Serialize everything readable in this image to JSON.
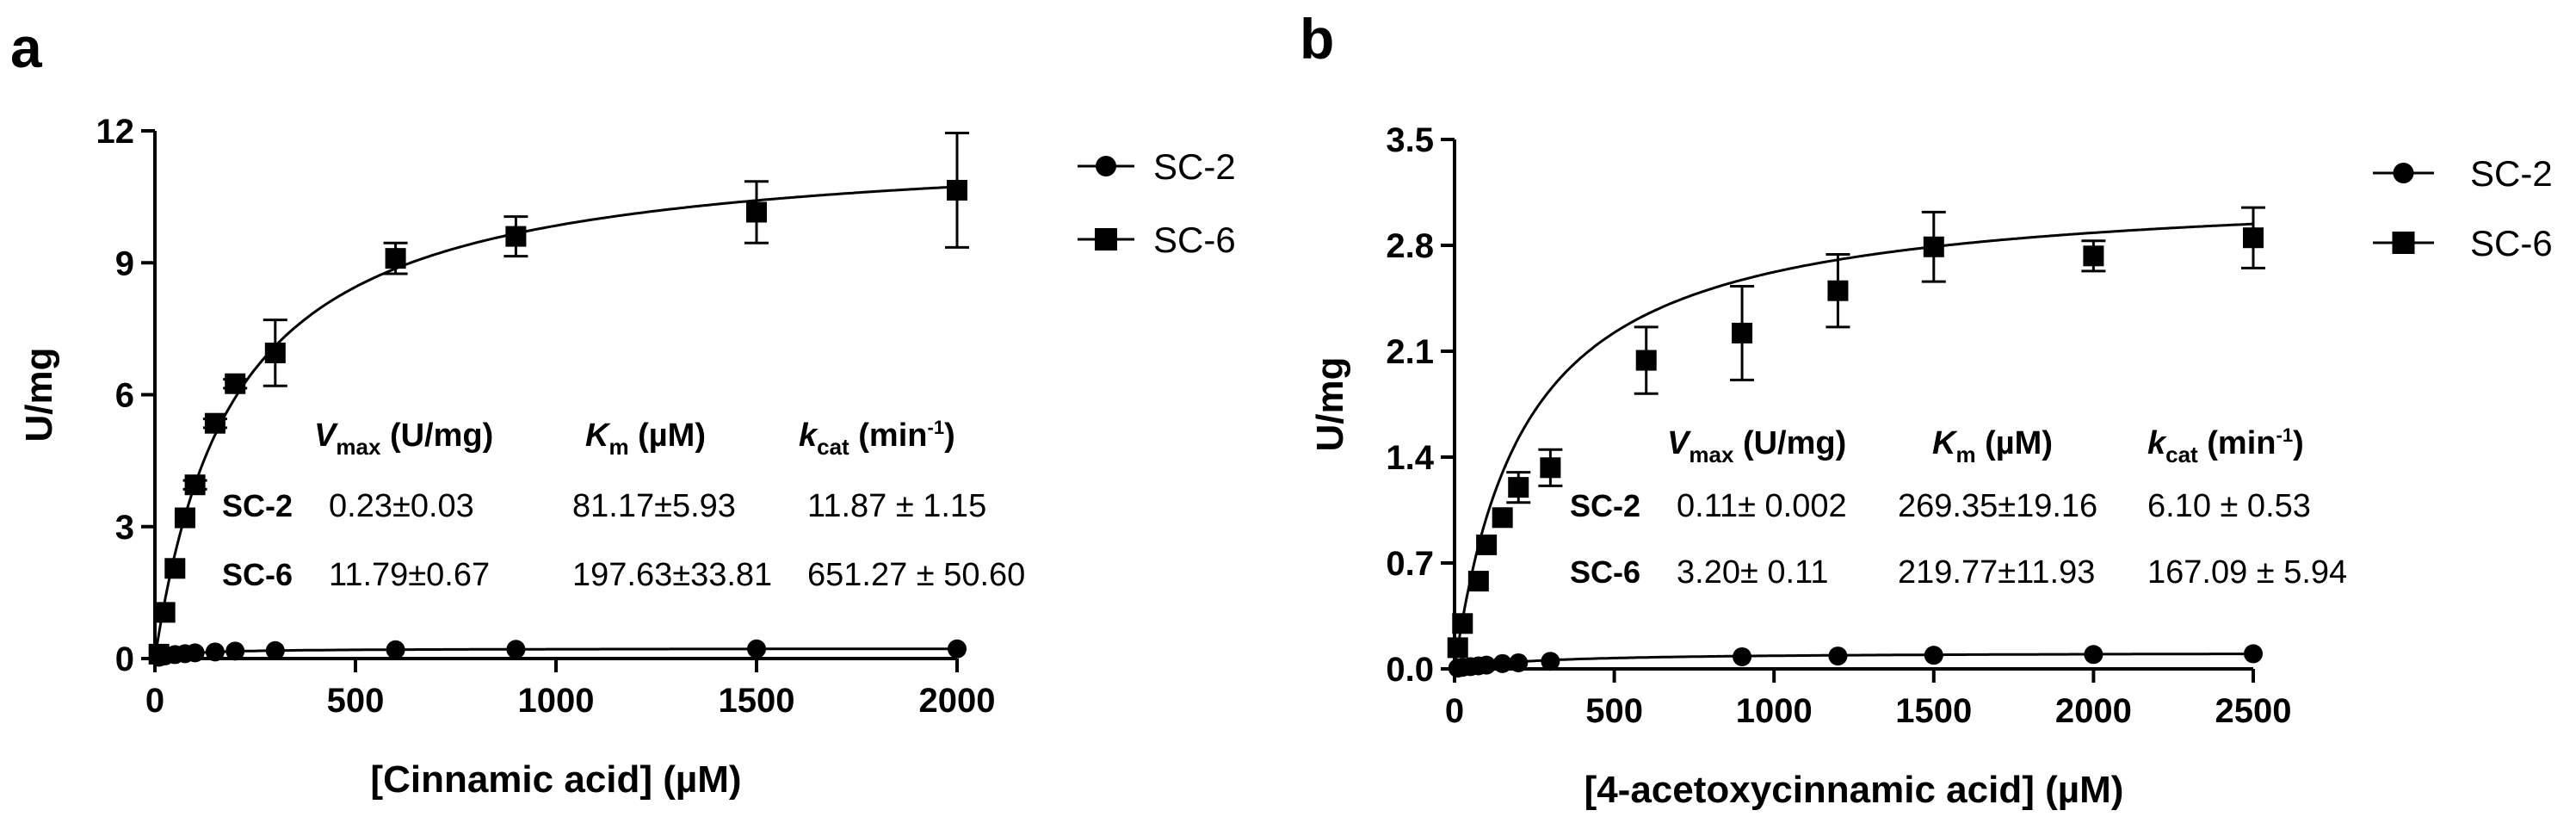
{
  "chart_data": [
    {
      "panel": "a",
      "type": "scatter",
      "title": "",
      "xlabel": "[Cinnamic acid] (µM)",
      "ylabel": "U/mg",
      "xlim": [
        0,
        2000
      ],
      "ylim": [
        0,
        12
      ],
      "xticks": [
        0,
        500,
        1000,
        1500,
        2000
      ],
      "yticks": [
        0,
        3,
        6,
        9,
        12
      ],
      "xtick_labels": [
        "0",
        "500",
        "1000",
        "1500",
        "2000"
      ],
      "ytick_labels": [
        "0",
        "3",
        "6",
        "9",
        "12"
      ],
      "legend_position": "top-right",
      "series": [
        {
          "name": "SC-2",
          "marker": "circle",
          "fit": {
            "vmax": 0.23,
            "km": 81.17
          },
          "points": [
            {
              "x": 10,
              "y": 0.03,
              "err": 0
            },
            {
              "x": 25,
              "y": 0.06,
              "err": 0
            },
            {
              "x": 50,
              "y": 0.09,
              "err": 0
            },
            {
              "x": 75,
              "y": 0.11,
              "err": 0
            },
            {
              "x": 100,
              "y": 0.13,
              "err": 0
            },
            {
              "x": 150,
              "y": 0.15,
              "err": 0
            },
            {
              "x": 200,
              "y": 0.17,
              "err": 0
            },
            {
              "x": 300,
              "y": 0.18,
              "err": 0
            },
            {
              "x": 600,
              "y": 0.2,
              "err": 0
            },
            {
              "x": 900,
              "y": 0.21,
              "err": 0
            },
            {
              "x": 1500,
              "y": 0.22,
              "err": 0
            },
            {
              "x": 2000,
              "y": 0.22,
              "err": 0
            }
          ]
        },
        {
          "name": "SC-6",
          "marker": "square",
          "fit": {
            "vmax": 11.79,
            "km": 197.63
          },
          "points": [
            {
              "x": 10,
              "y": 0.1,
              "err": 0
            },
            {
              "x": 25,
              "y": 1.05,
              "err": 0
            },
            {
              "x": 50,
              "y": 2.05,
              "err": 0
            },
            {
              "x": 75,
              "y": 3.2,
              "err": 0
            },
            {
              "x": 100,
              "y": 3.95,
              "err": 0.1
            },
            {
              "x": 150,
              "y": 5.35,
              "err": 0.1
            },
            {
              "x": 200,
              "y": 6.25,
              "err": 0.1
            },
            {
              "x": 300,
              "y": 6.95,
              "err": 0.75
            },
            {
              "x": 600,
              "y": 9.1,
              "err": 0.35
            },
            {
              "x": 900,
              "y": 9.6,
              "err": 0.45
            },
            {
              "x": 1500,
              "y": 10.15,
              "err": 0.7
            },
            {
              "x": 2000,
              "y": 10.65,
              "err": 1.3
            }
          ]
        }
      ],
      "table": {
        "headers": {
          "vmax": {
            "main": "V",
            "sub": "max",
            "unit": " (U/mg)"
          },
          "km": {
            "main": "K",
            "sub": "m",
            "unit": " (µM)"
          },
          "kcat": {
            "main": "k",
            "sub": "cat",
            "unit": " (min",
            "sup": "-1",
            "close": ")"
          }
        },
        "rows": [
          {
            "label": "SC-2",
            "vmax": "0.23±0.03",
            "km": "81.17±5.93",
            "kcat": "11.87 ± 1.15"
          },
          {
            "label": "SC-6",
            "vmax": "11.79±0.67",
            "km": "197.63±33.81",
            "kcat": "651.27 ± 50.60"
          }
        ]
      }
    },
    {
      "panel": "b",
      "type": "scatter",
      "title": "",
      "xlabel": "[4-acetoxycinnamic acid] (µM)",
      "ylabel": "U/mg",
      "xlim": [
        0,
        2500
      ],
      "ylim": [
        0,
        3.5
      ],
      "xticks": [
        0,
        500,
        1000,
        1500,
        2000,
        2500
      ],
      "yticks": [
        0,
        0.7,
        1.4,
        2.1,
        2.8,
        3.5
      ],
      "xtick_labels": [
        "0",
        "500",
        "1000",
        "1500",
        "2000",
        "2500"
      ],
      "ytick_labels": [
        "0.0",
        "0.7",
        "1.4",
        "2.1",
        "2.8",
        "3.5"
      ],
      "legend_position": "top-right",
      "series": [
        {
          "name": "SC-2",
          "marker": "circle",
          "fit": {
            "vmax": 0.11,
            "km": 269.35
          },
          "points": [
            {
              "x": 10,
              "y": 0.005,
              "err": 0
            },
            {
              "x": 25,
              "y": 0.01,
              "err": 0
            },
            {
              "x": 50,
              "y": 0.015,
              "err": 0
            },
            {
              "x": 75,
              "y": 0.02,
              "err": 0
            },
            {
              "x": 100,
              "y": 0.025,
              "err": 0
            },
            {
              "x": 150,
              "y": 0.035,
              "err": 0
            },
            {
              "x": 200,
              "y": 0.04,
              "err": 0
            },
            {
              "x": 300,
              "y": 0.05,
              "err": 0
            },
            {
              "x": 900,
              "y": 0.08,
              "err": 0
            },
            {
              "x": 1200,
              "y": 0.085,
              "err": 0
            },
            {
              "x": 1500,
              "y": 0.09,
              "err": 0
            },
            {
              "x": 2000,
              "y": 0.095,
              "err": 0
            },
            {
              "x": 2500,
              "y": 0.1,
              "err": 0
            }
          ]
        },
        {
          "name": "SC-6",
          "marker": "square",
          "fit": {
            "vmax": 3.2,
            "km": 219.77
          },
          "points": [
            {
              "x": 10,
              "y": 0.14,
              "err": 0
            },
            {
              "x": 25,
              "y": 0.3,
              "err": 0
            },
            {
              "x": 75,
              "y": 0.58,
              "err": 0
            },
            {
              "x": 100,
              "y": 0.82,
              "err": 0
            },
            {
              "x": 150,
              "y": 1.0,
              "err": 0
            },
            {
              "x": 200,
              "y": 1.2,
              "err": 0.1
            },
            {
              "x": 300,
              "y": 1.33,
              "err": 0.12
            },
            {
              "x": 600,
              "y": 2.04,
              "err": 0.22
            },
            {
              "x": 900,
              "y": 2.22,
              "err": 0.31
            },
            {
              "x": 1200,
              "y": 2.5,
              "err": 0.24
            },
            {
              "x": 1500,
              "y": 2.79,
              "err": 0.23
            },
            {
              "x": 2000,
              "y": 2.73,
              "err": 0.1
            },
            {
              "x": 2500,
              "y": 2.85,
              "err": 0.2
            }
          ]
        }
      ],
      "table": {
        "headers": {
          "vmax": {
            "main": "V",
            "sub": "max",
            "unit": " (U/mg)"
          },
          "km": {
            "main": "K",
            "sub": "m",
            "unit": " (µM)"
          },
          "kcat": {
            "main": "k",
            "sub": "cat",
            "unit": " (min",
            "sup": "-1",
            "close": ")"
          }
        },
        "rows": [
          {
            "label": "SC-2",
            "vmax": "0.11± 0.002",
            "km": "269.35±19.16",
            "kcat": "6.10 ± 0.53"
          },
          {
            "label": "SC-6",
            "vmax": "3.20± 0.11",
            "km": "219.77±11.93",
            "kcat": "167.09 ± 5.94"
          }
        ]
      }
    }
  ]
}
